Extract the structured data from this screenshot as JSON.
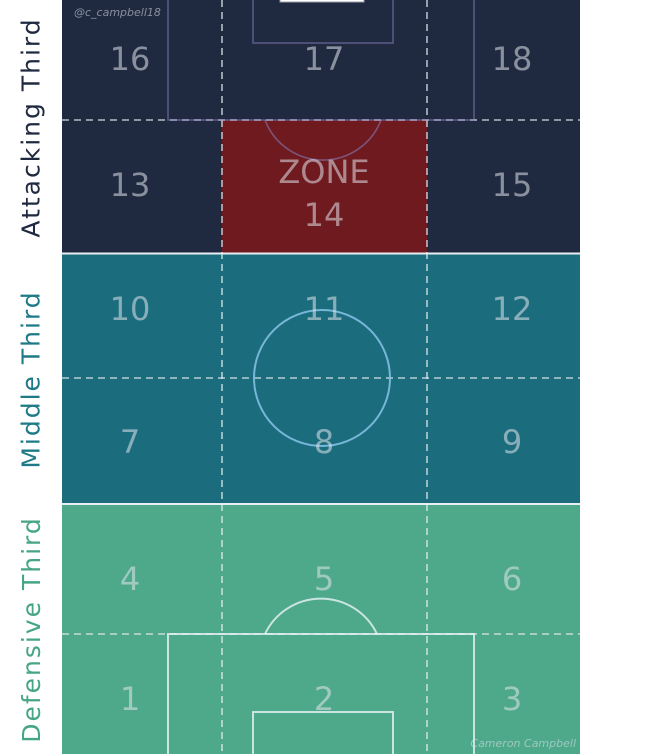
{
  "thirds": {
    "attacking": {
      "label": "Attacking Third",
      "color": "#1f2940",
      "text_color": "#1f2940"
    },
    "middle": {
      "label": "Middle Third",
      "color": "#1b6d7d",
      "text_color": "#1d7a86"
    },
    "defensive": {
      "label": "Defensive Third",
      "color": "#4ea88a",
      "text_color": "#46a684"
    }
  },
  "highlight": {
    "word": "ZONE",
    "number": "14",
    "color": "#6e1a1f"
  },
  "zones": [
    "1",
    "2",
    "3",
    "4",
    "5",
    "6",
    "7",
    "8",
    "9",
    "10",
    "11",
    "12",
    "13",
    "15",
    "16",
    "17",
    "18"
  ],
  "credits": {
    "handle": "@c_campbell18",
    "author": "Cameron Campbell"
  }
}
